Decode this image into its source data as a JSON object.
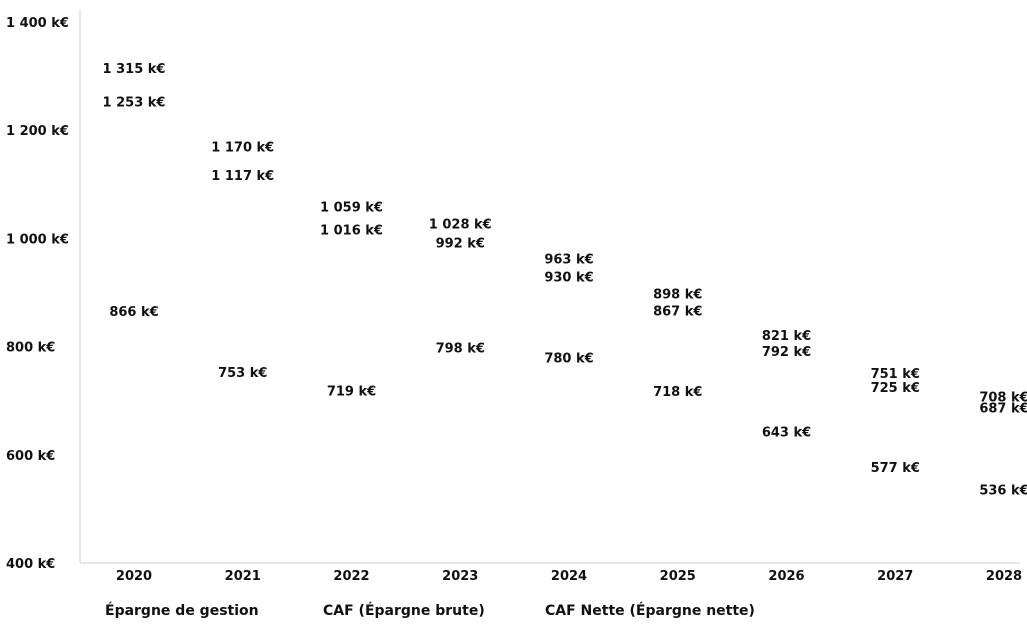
{
  "chart_data": {
    "type": "line",
    "categories": [
      "2020",
      "2021",
      "2022",
      "2023",
      "2024",
      "2025",
      "2026",
      "2027",
      "2028"
    ],
    "series": [
      {
        "name": "Épargne de gestion",
        "values": [
          1315,
          1170,
          1059,
          1028,
          963,
          898,
          821,
          751,
          708
        ]
      },
      {
        "name": "CAF (Épargne brute)",
        "values": [
          1253,
          1117,
          1016,
          992,
          930,
          867,
          792,
          725,
          687
        ]
      },
      {
        "name": "CAF Nette (Épargne nette)",
        "values": [
          866,
          753,
          719,
          798,
          780,
          718,
          643,
          577,
          536
        ]
      }
    ],
    "data_labels": [
      [
        "1 315 k€",
        "1 170 k€",
        "1 059 k€",
        "1 028 k€",
        "963 k€",
        "898 k€",
        "821 k€",
        "751 k€",
        "708 k€"
      ],
      [
        "1 253 k€",
        "1 117 k€",
        "1 016 k€",
        "992 k€",
        "930 k€",
        "867 k€",
        "792 k€",
        "725 k€",
        "687 k€"
      ],
      [
        "866 k€",
        "753 k€",
        "719 k€",
        "798 k€",
        "780 k€",
        "718 k€",
        "643 k€",
        "577 k€",
        "536 k€"
      ]
    ],
    "y_ticks": [
      400,
      600,
      800,
      1000,
      1200,
      1400
    ],
    "y_tick_labels": [
      "400 k€",
      "600 k€",
      "800 k€",
      "1 000 k€",
      "1 200 k€",
      "1 400 k€"
    ],
    "ylim": [
      400,
      1400
    ],
    "title": "",
    "xlabel": "",
    "ylabel": "",
    "grid": false,
    "legend": "bottom",
    "colors": [
      "#111111",
      "#111111",
      "#111111"
    ]
  }
}
